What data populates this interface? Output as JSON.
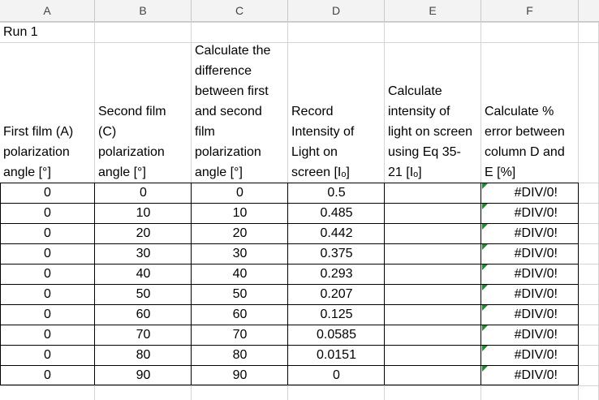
{
  "column_headers": [
    "A",
    "B",
    "C",
    "D",
    "E",
    "F"
  ],
  "run_label": "Run 1",
  "headers": {
    "A": [
      "First film (A)",
      "polarization",
      "angle [°]"
    ],
    "B": [
      "Second film",
      "(C)",
      "polarization",
      "angle [°]"
    ],
    "C": [
      "Calculate the",
      "difference",
      "between first",
      "and second",
      "film",
      "polarization",
      "angle [°]"
    ],
    "D": [
      "Record",
      "Intensity of",
      "Light on",
      "screen [Iₒ]"
    ],
    "E": [
      "Calculate",
      "intensity of",
      "light on screen",
      "using Eq 35-",
      "21 [Iₒ]"
    ],
    "F": [
      "Calculate %",
      "error between",
      "column D and",
      "E [%]"
    ]
  },
  "rows": [
    {
      "a": "0",
      "b": "0",
      "c": "0",
      "d": "0.5",
      "e": "",
      "f": "#DIV/0!"
    },
    {
      "a": "0",
      "b": "10",
      "c": "10",
      "d": "0.485",
      "e": "",
      "f": "#DIV/0!"
    },
    {
      "a": "0",
      "b": "20",
      "c": "20",
      "d": "0.442",
      "e": "",
      "f": "#DIV/0!"
    },
    {
      "a": "0",
      "b": "30",
      "c": "30",
      "d": "0.375",
      "e": "",
      "f": "#DIV/0!"
    },
    {
      "a": "0",
      "b": "40",
      "c": "40",
      "d": "0.293",
      "e": "",
      "f": "#DIV/0!"
    },
    {
      "a": "0",
      "b": "50",
      "c": "50",
      "d": "0.207",
      "e": "",
      "f": "#DIV/0!"
    },
    {
      "a": "0",
      "b": "60",
      "c": "60",
      "d": "0.125",
      "e": "",
      "f": "#DIV/0!"
    },
    {
      "a": "0",
      "b": "70",
      "c": "70",
      "d": "0.0585",
      "e": "",
      "f": "#DIV/0!"
    },
    {
      "a": "0",
      "b": "80",
      "c": "80",
      "d": "0.0151",
      "e": "",
      "f": "#DIV/0!"
    },
    {
      "a": "0",
      "b": "90",
      "c": "90",
      "d": "0",
      "e": "",
      "f": "#DIV/0!"
    }
  ],
  "colors": {
    "error_flag": "#1f8a2e",
    "header_bg": "#f3f3f3",
    "gridline": "#d4d4d4"
  }
}
